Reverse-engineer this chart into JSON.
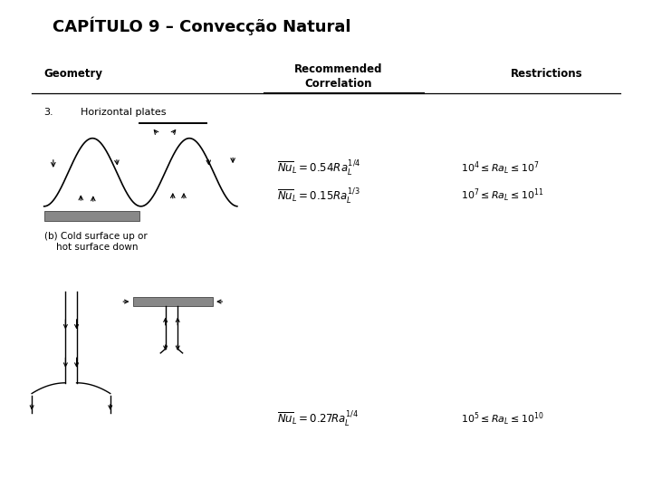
{
  "title": "CAPÍTULO 9 – Convecção Natural",
  "title_fontsize": 13,
  "background_color": "#ffffff",
  "panel_color": "#c0c0c0",
  "header_geometry": "Geometry",
  "header_correlation": "Recommended\nCorrelation",
  "header_restrictions": "Restrictions",
  "label_3": "3.",
  "label_horiz": "Horizontal plates",
  "label_b": "(b) Cold surface up or\n    hot surface down",
  "eq1": "$\\overline{Nu}_L = 0.54Ra_L^{1/4}$",
  "eq2": "$\\overline{Nu}_L = 0.15Ra_L^{1/3}$",
  "eq3": "$\\overline{Nu}_L = 0.27Ra_L^{1/4}$",
  "restr1": "$10^4 \\leq Ra_L \\leq 10^7$",
  "restr2": "$10^7 \\leq Ra_L \\leq 10^{11}$",
  "restr3": "$10^5 \\leq Ra_L \\leq 10^{10}$",
  "plate_color": "#888888",
  "line_color": "#000000"
}
